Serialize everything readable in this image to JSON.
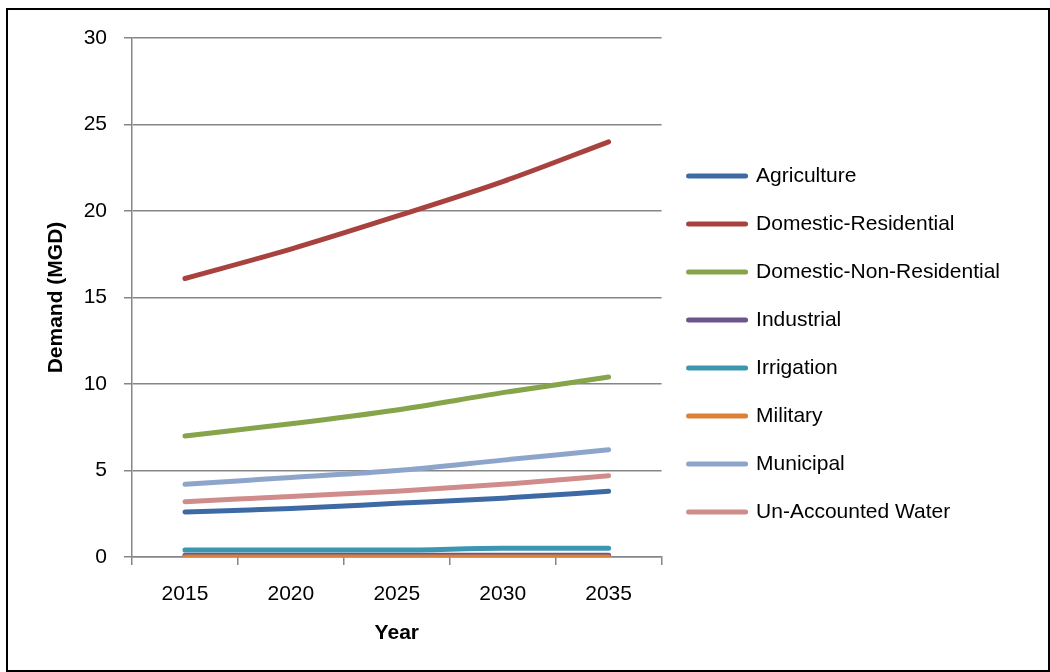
{
  "chart_data": {
    "type": "line",
    "xlabel": "Year",
    "ylabel": "Demand (MGD)",
    "categories": [
      "2015",
      "2020",
      "2025",
      "2030",
      "2035"
    ],
    "series": [
      {
        "name": "Agriculture",
        "color": "#3d6aa5",
        "values": [
          2.6,
          2.8,
          3.1,
          3.4,
          3.8
        ]
      },
      {
        "name": "Domestic-Residential",
        "color": "#a8423f",
        "values": [
          16.1,
          17.8,
          19.7,
          21.7,
          24.0
        ]
      },
      {
        "name": "Domestic-Non-Residential",
        "color": "#86a44a",
        "values": [
          7.0,
          7.7,
          8.5,
          9.5,
          10.4
        ]
      },
      {
        "name": "Industrial",
        "color": "#6e548d",
        "values": [
          0.1,
          0.1,
          0.1,
          0.1,
          0.1
        ]
      },
      {
        "name": "Irrigation",
        "color": "#3c96b0",
        "values": [
          0.4,
          0.4,
          0.4,
          0.5,
          0.5
        ]
      },
      {
        "name": "Military",
        "color": "#da8137",
        "values": [
          0.0,
          0.0,
          0.0,
          0.0,
          0.0
        ]
      },
      {
        "name": "Municipal",
        "color": "#8ea5cb",
        "values": [
          4.2,
          4.6,
          5.0,
          5.6,
          6.2
        ]
      },
      {
        "name": "Un-Accounted Water",
        "color": "#cf8c8b",
        "values": [
          3.2,
          3.5,
          3.8,
          4.2,
          4.7
        ]
      }
    ],
    "ylim": [
      0,
      30
    ],
    "yticks": [
      0,
      5,
      10,
      15,
      20,
      25,
      30
    ],
    "grid": "y",
    "legend": "right",
    "marker": "none",
    "line_style": "solid"
  }
}
